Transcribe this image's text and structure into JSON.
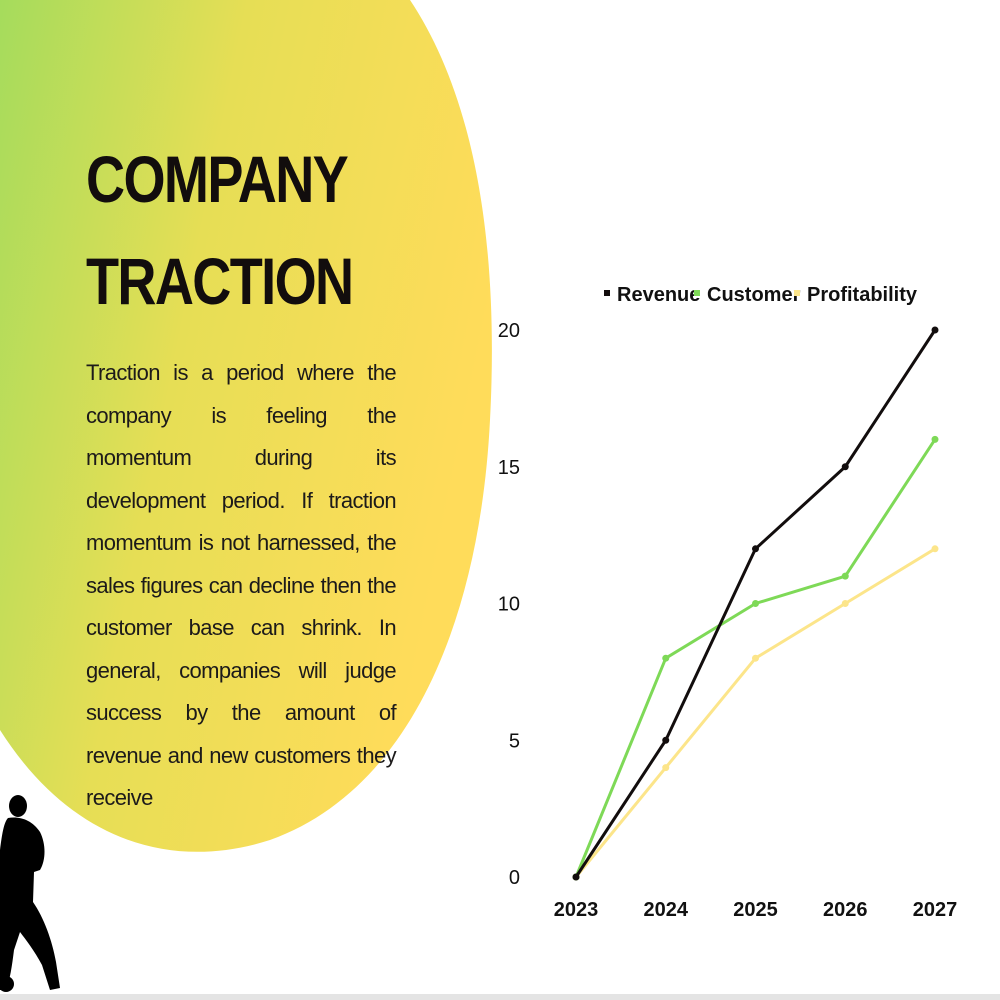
{
  "slide": {
    "title_lines": [
      "COMPANY",
      "TRACTION"
    ],
    "paragraph": "Traction is a period where the company is feeling the momentum during its development period. If traction momentum is not harnessed, the sales figures can decline then the customer base can shrink. In general, companies will judge success by the amount of revenue and new customers they receive"
  },
  "colors": {
    "gradient_start": "#a5dc5c",
    "gradient_end": "#ffdc5a",
    "text": "#120d0d"
  },
  "chart_data": {
    "type": "line",
    "title": "",
    "xlabel": "",
    "ylabel": "",
    "categories": [
      "2023",
      "2024",
      "2025",
      "2026",
      "2027"
    ],
    "ylim": [
      0,
      20
    ],
    "yticks": [
      0,
      5,
      10,
      15,
      20
    ],
    "legend_position": "top",
    "grid": false,
    "series": [
      {
        "name": "Revenue",
        "values": [
          0,
          5,
          12,
          15,
          20
        ],
        "color": "#120d0d"
      },
      {
        "name": "Customer",
        "values": [
          0,
          8,
          10,
          11,
          16
        ],
        "color": "#7ed957"
      },
      {
        "name": "Profitability",
        "values": [
          0,
          4,
          8,
          10,
          12
        ],
        "color": "#fce58a"
      }
    ]
  }
}
